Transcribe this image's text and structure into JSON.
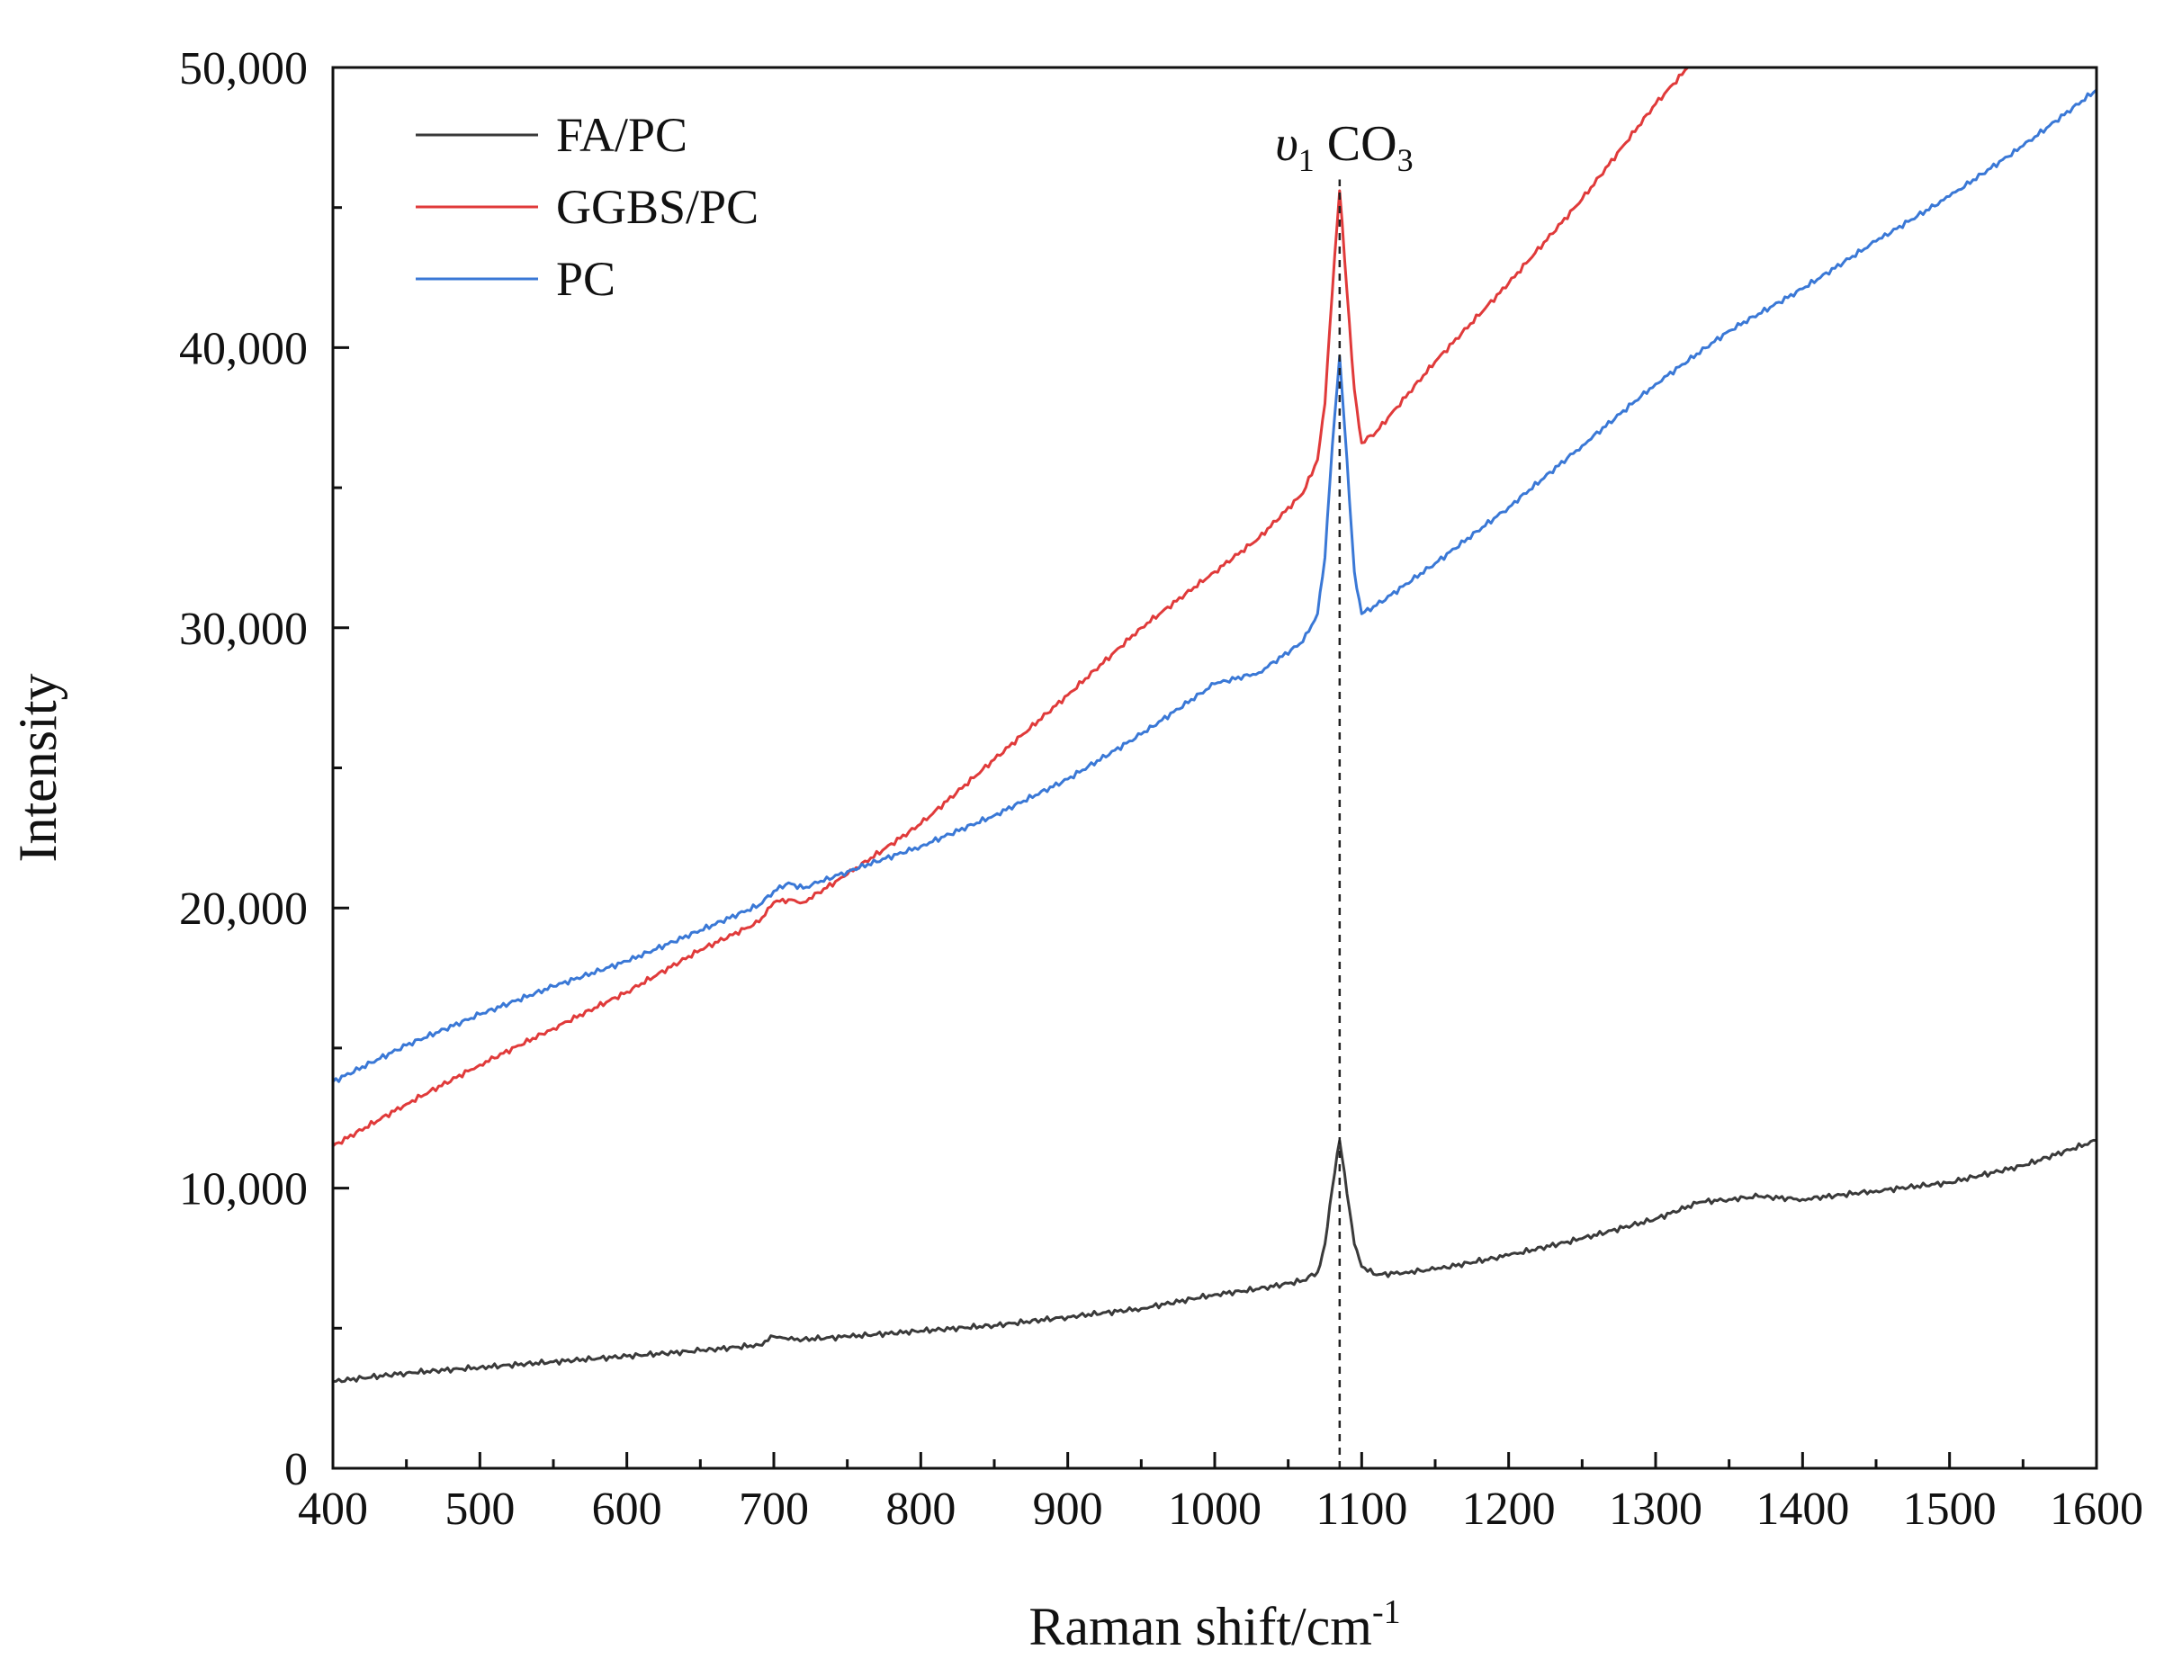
{
  "chart_data": {
    "type": "line",
    "title": "",
    "xlabel": "Raman shift/cm",
    "xlabel_superscript": "-1",
    "ylabel": "Intensity",
    "xlim": [
      400,
      1600
    ],
    "ylim": [
      0,
      50000
    ],
    "x_ticks": [
      400,
      500,
      600,
      700,
      800,
      900,
      1000,
      1100,
      1200,
      1300,
      1400,
      1500,
      1600
    ],
    "x_tick_labels": [
      "400",
      "500",
      "600",
      "700",
      "800",
      "900",
      "1000",
      "1100",
      "1200",
      "1300",
      "1400",
      "1500",
      "1600"
    ],
    "y_ticks": [
      0,
      10000,
      20000,
      30000,
      40000,
      50000
    ],
    "y_tick_labels": [
      "0",
      "10,000",
      "20,000",
      "30,000",
      "40,000",
      "50,000"
    ],
    "grid": false,
    "legend_position": "top-left",
    "annotation": {
      "label_main": "υ",
      "label_sub": "1",
      "label_species": "CO",
      "label_species_sub": "3",
      "x": 1085,
      "y_from": 0,
      "y_to": 46000
    },
    "series": [
      {
        "name": "FA/PC",
        "color": "#3a3a3a",
        "x": [
          400,
          450,
          500,
          550,
          600,
          650,
          690,
          700,
          710,
          720,
          750,
          800,
          850,
          900,
          950,
          1000,
          1030,
          1060,
          1070,
          1075,
          1080,
          1085,
          1090,
          1095,
          1100,
          1110,
          1130,
          1150,
          1200,
          1250,
          1300,
          1330,
          1350,
          1370,
          1400,
          1450,
          1500,
          1550,
          1600
        ],
        "y": [
          3100,
          3400,
          3600,
          3800,
          4000,
          4200,
          4400,
          4700,
          4600,
          4600,
          4700,
          4900,
          5100,
          5400,
          5700,
          6200,
          6400,
          6700,
          7000,
          8000,
          10000,
          11700,
          9800,
          8000,
          7200,
          6900,
          7000,
          7100,
          7600,
          8200,
          8900,
          9500,
          9600,
          9700,
          9600,
          9900,
          10200,
          10800,
          11700
        ]
      },
      {
        "name": "GGBS/PC",
        "color": "#e03a3a",
        "x": [
          400,
          450,
          500,
          550,
          600,
          650,
          690,
          700,
          710,
          720,
          750,
          800,
          850,
          900,
          950,
          1000,
          1030,
          1060,
          1070,
          1075,
          1080,
          1085,
          1090,
          1095,
          1100,
          1110,
          1150,
          1200,
          1250,
          1300,
          1322
        ],
        "y": [
          11500,
          13000,
          14400,
          15700,
          17000,
          18500,
          19500,
          20200,
          20300,
          20200,
          21200,
          23000,
          25300,
          27600,
          30000,
          32000,
          33200,
          34800,
          36000,
          38000,
          42000,
          45600,
          42000,
          38500,
          36600,
          37000,
          39500,
          42300,
          45300,
          48700,
          50000
        ]
      },
      {
        "name": "PC",
        "color": "#3a78d6",
        "x": [
          400,
          450,
          500,
          550,
          600,
          650,
          690,
          700,
          710,
          720,
          730,
          750,
          800,
          850,
          900,
          950,
          1000,
          1030,
          1060,
          1070,
          1075,
          1080,
          1085,
          1090,
          1095,
          1100,
          1110,
          1150,
          1200,
          1250,
          1300,
          1350,
          1400,
          1450,
          1500,
          1550,
          1600
        ],
        "y": [
          13800,
          15100,
          16200,
          17200,
          18100,
          19200,
          20100,
          20600,
          20900,
          20700,
          20900,
          21300,
          22200,
          23300,
          24600,
          26200,
          28000,
          28400,
          29500,
          30500,
          32500,
          36500,
          39700,
          36000,
          32000,
          30500,
          30800,
          32300,
          34300,
          36500,
          38700,
          40600,
          42100,
          43800,
          45400,
          47200,
          49200
        ]
      }
    ]
  }
}
